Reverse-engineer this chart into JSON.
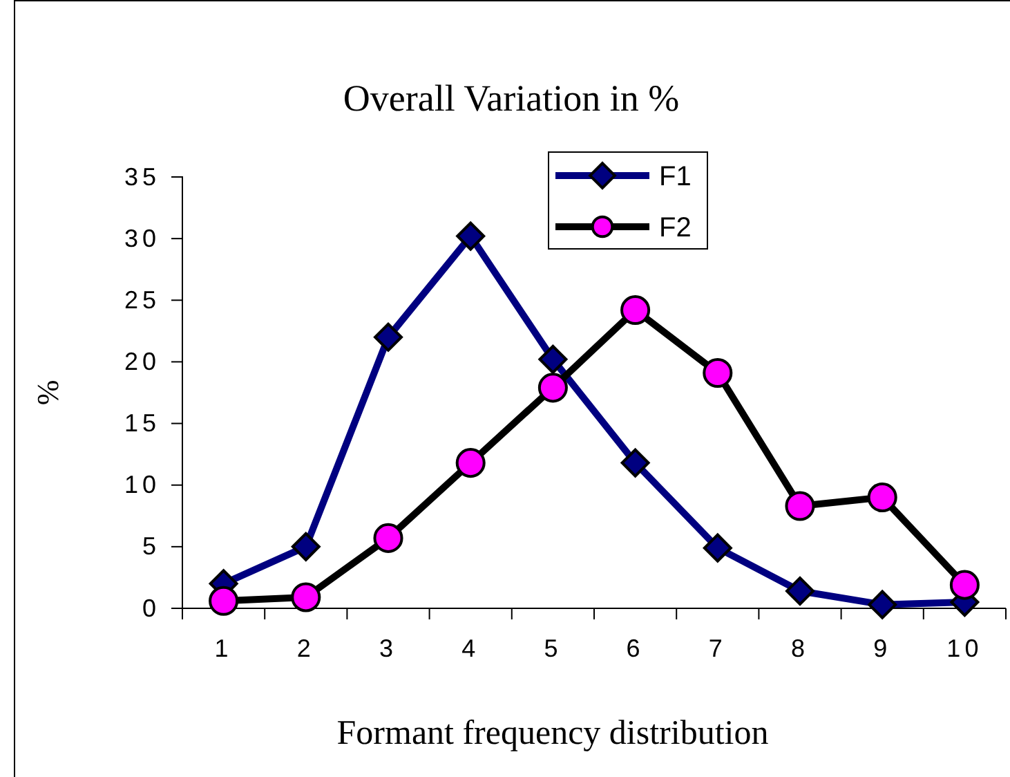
{
  "chart_data": {
    "type": "line",
    "title": "Overall Variation in %",
    "xlabel": "Formant frequency distribution",
    "ylabel": "%",
    "categories": [
      "1",
      "2",
      "3",
      "4",
      "5",
      "6",
      "7",
      "8",
      "9",
      "10"
    ],
    "series": [
      {
        "name": "F1",
        "color": "#000080",
        "marker": "diamond",
        "values": [
          2,
          5,
          22,
          30.2,
          20.2,
          11.8,
          4.9,
          1.4,
          0.3,
          0.5
        ]
      },
      {
        "name": "F2",
        "color": "#000000",
        "marker": "circle",
        "values": [
          0.6,
          0.9,
          5.7,
          11.8,
          17.9,
          24.2,
          19.1,
          8.3,
          9,
          1.9
        ]
      }
    ],
    "ylim": [
      0,
      35
    ],
    "yticks": [
      0,
      5,
      10,
      15,
      20,
      25,
      30,
      35
    ],
    "grid": false,
    "legend": "top"
  }
}
